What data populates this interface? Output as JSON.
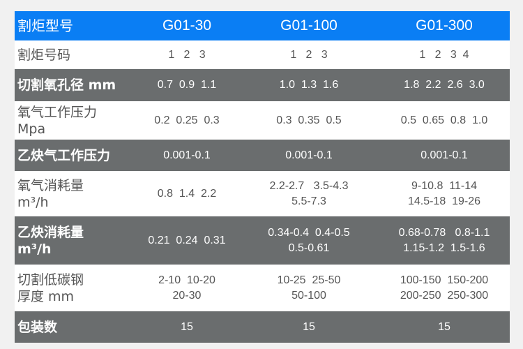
{
  "header": {
    "label": "割炬型号",
    "models": [
      "G01-30",
      "G01-100",
      "G01-300"
    ]
  },
  "rows": [
    {
      "label": [
        "割炬号码"
      ],
      "values": [
        [
          "1   2   3"
        ],
        [
          "1   2   3"
        ],
        [
          "1   2   3  4"
        ]
      ]
    },
    {
      "label": [
        "切割氧孔径 mm"
      ],
      "values": [
        [
          "0.7  0.9  1.1"
        ],
        [
          "1.0  1.3  1.6"
        ],
        [
          "1.8  2.2  2.6  3.0"
        ]
      ]
    },
    {
      "label": [
        "氧气工作压力",
        "Mpa"
      ],
      "values": [
        [
          "0.2  0.25  0.3"
        ],
        [
          "0.3  0.35  0.5"
        ],
        [
          "0.5  0.65  0.8  1.0"
        ]
      ]
    },
    {
      "label": [
        "乙炔气工作压力"
      ],
      "values": [
        [
          "0.001-0.1"
        ],
        [
          "0.001-0.1"
        ],
        [
          "0.001-0.1"
        ]
      ]
    },
    {
      "label": [
        "氧气消耗量",
        "m³/h"
      ],
      "values": [
        [
          "0.8  1.4  2.2"
        ],
        [
          "2.2-2.7   3.5-4.3",
          "5.5-7.3"
        ],
        [
          "9-10.8  11-14",
          "14.5-18  19-26"
        ]
      ]
    },
    {
      "label": [
        "乙炔消耗量",
        "m³/h"
      ],
      "values": [
        [
          "0.21  0.24  0.31"
        ],
        [
          "0.34-0.4  0.4-0.5",
          "0.5-0.61"
        ],
        [
          "0.68-0.78   0.8-1.1",
          "1.15-1.2  1.5-1.6"
        ]
      ]
    },
    {
      "label": [
        "切割低碳钢",
        "厚度 mm"
      ],
      "values": [
        [
          "2-10  10-20",
          "20-30"
        ],
        [
          "10-25  25-50",
          "50-100"
        ],
        [
          "100-150  150-200",
          "200-250  250-300"
        ]
      ]
    },
    {
      "label": [
        "包装数"
      ],
      "values": [
        [
          "15"
        ],
        [
          "15"
        ],
        [
          "15"
        ]
      ]
    }
  ],
  "colors": {
    "header": "#0a7ef4",
    "gray_row": "#6a6d6e",
    "white_row": "#ffffff"
  }
}
